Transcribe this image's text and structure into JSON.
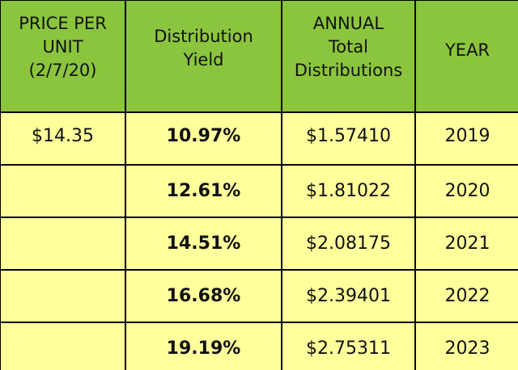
{
  "table": {
    "headers": [
      {
        "lines": [
          "PRICE PER",
          "UNIT",
          "(2/7/20)"
        ]
      },
      {
        "lines": [
          "Distribution",
          "Yield"
        ]
      },
      {
        "lines": [
          "ANNUAL",
          "Total",
          "Distributions"
        ]
      },
      {
        "lines": [
          "YEAR"
        ]
      }
    ],
    "rows": [
      {
        "price": "$14.35",
        "yield": "10.97%",
        "distributions": "$1.57410",
        "year": "2019"
      },
      {
        "price": "",
        "yield": "12.61%",
        "distributions": "$1.81022",
        "year": "2020"
      },
      {
        "price": "",
        "yield": "14.51%",
        "distributions": "$2.08175",
        "year": "2021"
      },
      {
        "price": "",
        "yield": "16.68%",
        "distributions": "$2.39401",
        "year": "2022"
      },
      {
        "price": "",
        "yield": "19.19%",
        "distributions": "$2.75311",
        "year": "2023"
      }
    ]
  },
  "colors": {
    "header_background": "#8bc53d",
    "cell_background": "#ffff9c",
    "border": "#000000"
  }
}
